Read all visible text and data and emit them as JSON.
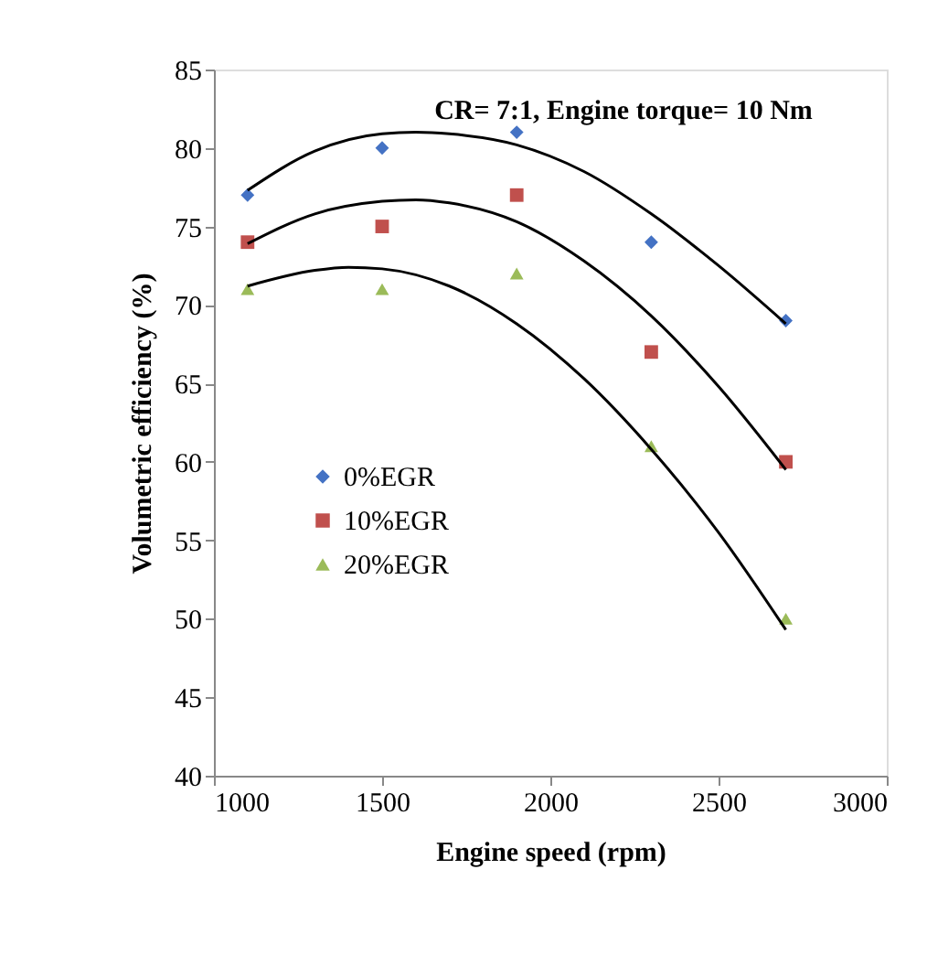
{
  "chart_data": {
    "type": "scatter",
    "title": "CR= 7:1, Engine torque= 10 Nm",
    "xlabel": "Engine speed (rpm)",
    "ylabel": "Volumetric efficiency (%)",
    "x": [
      1100,
      1500,
      1900,
      2300,
      2700
    ],
    "series": [
      {
        "name": "0%EGR",
        "color": "#4472c4",
        "marker": "diamond",
        "values": [
          77,
          80,
          81,
          74,
          69
        ]
      },
      {
        "name": "10%EGR",
        "color": "#c0504d",
        "marker": "square",
        "values": [
          74,
          75,
          77,
          67,
          60
        ]
      },
      {
        "name": "20%EGR",
        "color": "#9bbb59",
        "marker": "triangle",
        "values": [
          71,
          71,
          72,
          61,
          50
        ]
      },
      {
        "type": "line",
        "color": "#000000",
        "marker": "none",
        "x": [
          1100,
          1300,
          1500,
          1600,
          1700,
          1900,
          2100,
          2300,
          2500,
          2700
        ],
        "values": [
          77.3,
          79.8,
          80.9,
          81.0,
          80.9,
          80.2,
          78.5,
          75.8,
          72.5,
          68.8
        ]
      },
      {
        "type": "line",
        "color": "#000000",
        "marker": "none",
        "x": [
          1100,
          1300,
          1500,
          1600,
          1700,
          1900,
          2100,
          2300,
          2500,
          2700
        ],
        "values": [
          73.9,
          75.8,
          76.6,
          76.7,
          76.5,
          75.3,
          72.8,
          69.3,
          64.8,
          59.5
        ]
      },
      {
        "type": "line",
        "color": "#000000",
        "marker": "none",
        "x": [
          1100,
          1300,
          1400,
          1500,
          1700,
          1900,
          2100,
          2300,
          2500,
          2700
        ],
        "values": [
          71.2,
          72.2,
          72.4,
          72.3,
          71.2,
          68.8,
          65.3,
          60.8,
          55.5,
          49.3
        ]
      }
    ],
    "xlim": [
      1000,
      3000
    ],
    "xticks": [
      1000,
      1500,
      2000,
      2500,
      3000
    ],
    "ylim": [
      40,
      85
    ],
    "yticks": [
      40,
      45,
      50,
      55,
      60,
      65,
      70,
      75,
      80,
      85
    ],
    "grid": false,
    "legend": "left"
  }
}
